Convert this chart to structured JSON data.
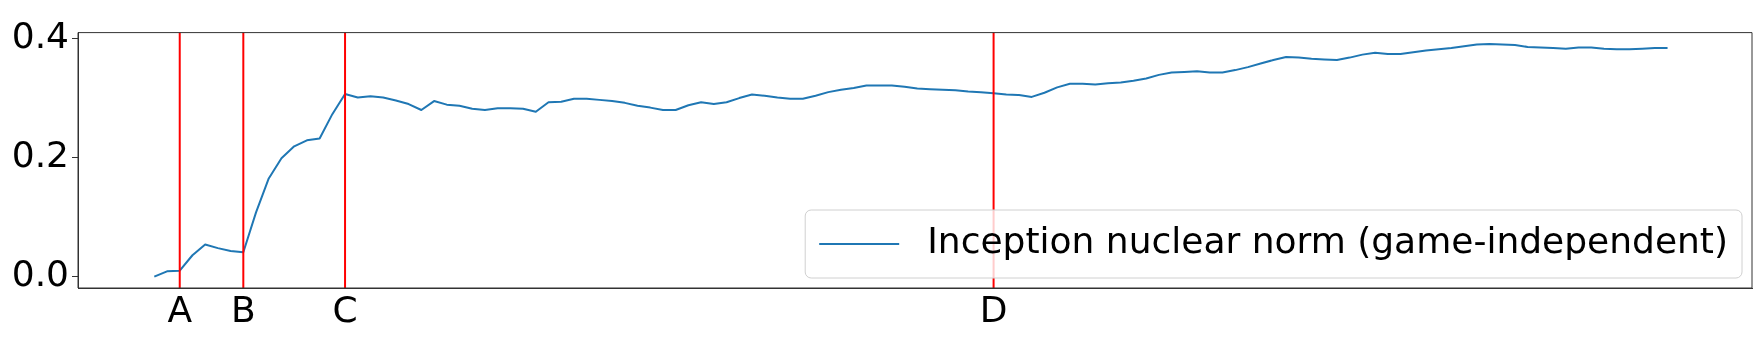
{
  "chart_data": {
    "type": "line",
    "ylim": [
      -0.019,
      0.41
    ],
    "categories": [
      null,
      null,
      "A",
      null,
      null,
      null,
      null,
      "B",
      null,
      null,
      null,
      null,
      null,
      null,
      null,
      "C",
      null,
      null,
      null,
      null,
      null,
      null,
      null,
      null,
      null,
      null,
      null,
      null,
      null,
      null,
      null,
      null,
      null,
      null,
      null,
      null,
      null,
      null,
      null,
      null,
      null,
      null,
      null,
      null,
      null,
      null,
      null,
      null,
      null,
      null,
      null,
      null,
      null,
      null,
      null,
      null,
      null,
      null,
      null,
      null,
      null,
      null,
      null,
      null,
      null,
      null,
      "D",
      null,
      null,
      null,
      null,
      null,
      null,
      null,
      null,
      null,
      null,
      null,
      null,
      null,
      null,
      null,
      null,
      null,
      null,
      null,
      null,
      null,
      null,
      null,
      null,
      null,
      null,
      null,
      null,
      null,
      null,
      null,
      null,
      null,
      null,
      null,
      null,
      null,
      null,
      null,
      null,
      null,
      null,
      null,
      null,
      null,
      null,
      null,
      null,
      null,
      null,
      null,
      null,
      null
    ],
    "yticks": [
      {
        "value": 0,
        "label": "0.0"
      },
      {
        "value": 0.2,
        "label": "0.2"
      },
      {
        "value": 0.4,
        "label": "0.4"
      }
    ],
    "series": [
      {
        "name": "Inception nuclear norm (game-independent)",
        "color": "#1f77b4",
        "values": [
          0,
          0.009,
          0.01,
          0.036,
          0.054,
          0.048,
          0.043,
          0.041,
          0.108,
          0.165,
          0.199,
          0.219,
          0.229,
          0.232,
          0.273,
          0.307,
          0.301,
          0.303,
          0.301,
          0.296,
          0.29,
          0.28,
          0.295,
          0.289,
          0.287,
          0.282,
          0.28,
          0.283,
          0.283,
          0.282,
          0.277,
          0.293,
          0.294,
          0.299,
          0.299,
          0.297,
          0.295,
          0.292,
          0.287,
          0.284,
          0.28,
          0.28,
          0.288,
          0.293,
          0.29,
          0.293,
          0.3,
          0.306,
          0.304,
          0.301,
          0.299,
          0.299,
          0.304,
          0.31,
          0.314,
          0.317,
          0.321,
          0.321,
          0.321,
          0.319,
          0.316,
          0.315,
          0.314,
          0.313,
          0.311,
          0.31,
          0.308,
          0.306,
          0.305,
          0.302,
          0.309,
          0.318,
          0.324,
          0.324,
          0.323,
          0.325,
          0.326,
          0.329,
          0.333,
          0.339,
          0.343,
          0.344,
          0.345,
          0.343,
          0.343,
          0.347,
          0.352,
          0.358,
          0.364,
          0.369,
          0.368,
          0.366,
          0.365,
          0.364,
          0.368,
          0.373,
          0.376,
          0.374,
          0.374,
          0.377,
          0.38,
          0.382,
          0.384,
          0.387,
          0.39,
          0.391,
          0.39,
          0.389,
          0.386,
          0.385,
          0.384,
          0.383,
          0.385,
          0.385,
          0.383,
          0.382,
          0.382,
          0.383,
          0.384,
          0.384
        ]
      }
    ],
    "ref_lines": [
      {
        "axis": "x",
        "value": "A",
        "color": "#ff0000"
      },
      {
        "axis": "x",
        "value": "B",
        "color": "#ff0000"
      },
      {
        "axis": "x",
        "value": "C",
        "color": "#ff0000"
      },
      {
        "axis": "x",
        "value": "D",
        "color": "#ff0000"
      }
    ],
    "legend": "bottom right",
    "grid": false
  }
}
